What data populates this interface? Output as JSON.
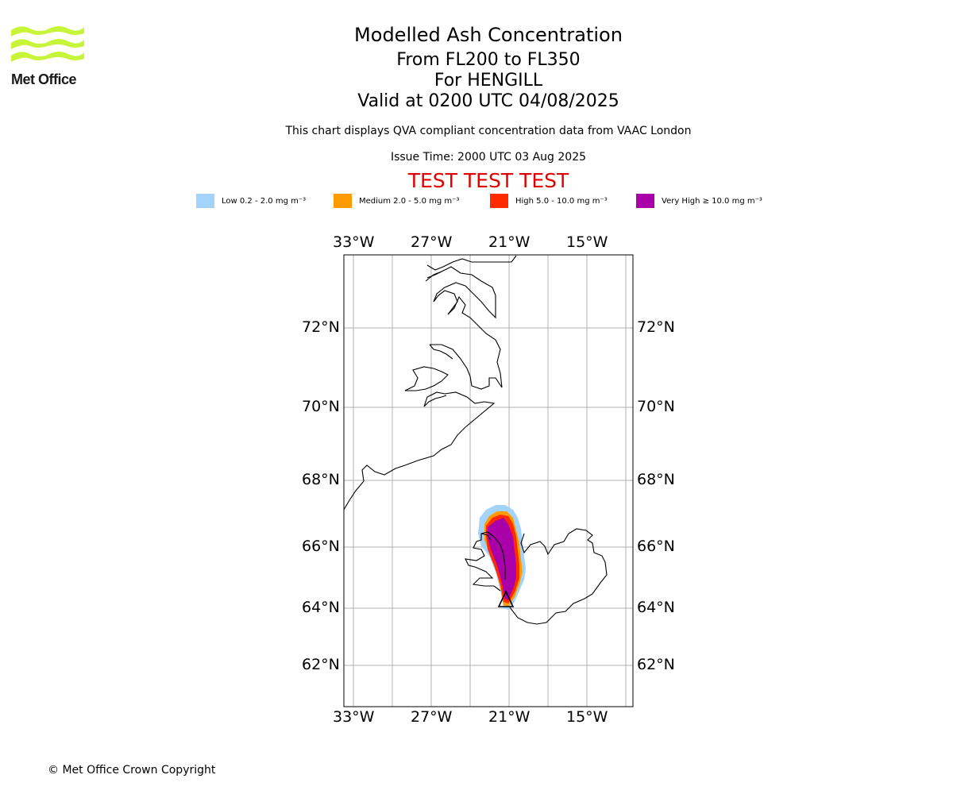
{
  "header": {
    "logo_text": "Met Office",
    "title": "Modelled Ash Concentration",
    "level_range": "From FL200 to FL350",
    "volcano": "For HENGILL",
    "valid_time": "Valid at 0200 UTC 04/08/2025",
    "subtitle": "This chart displays QVA compliant concentration data from VAAC London",
    "issue_time": "Issue Time: 2000 UTC 03 Aug 2025",
    "test_banner": "TEST TEST TEST"
  },
  "legend": [
    {
      "label": "Low 0.2 - 2.0 mg m⁻³",
      "color": "#a3d3fb"
    },
    {
      "label": "Medium 2.0 - 5.0 mg m⁻³",
      "color": "#ff9a00"
    },
    {
      "label": "High 5.0 - 10.0 mg m⁻³",
      "color": "#ff2a00"
    },
    {
      "label": "Very High ≥ 10.0 mg m⁻³",
      "color": "#aa00aa"
    }
  ],
  "map": {
    "lon_labels": [
      "33°W",
      "27°W",
      "21°W",
      "15°W"
    ],
    "lat_labels": [
      "72°N",
      "70°N",
      "68°N",
      "66°N",
      "64°N",
      "62°N"
    ],
    "volcano_marker": "triangle-icon"
  },
  "footer": {
    "copyright": "© Met Office Crown Copyright"
  }
}
